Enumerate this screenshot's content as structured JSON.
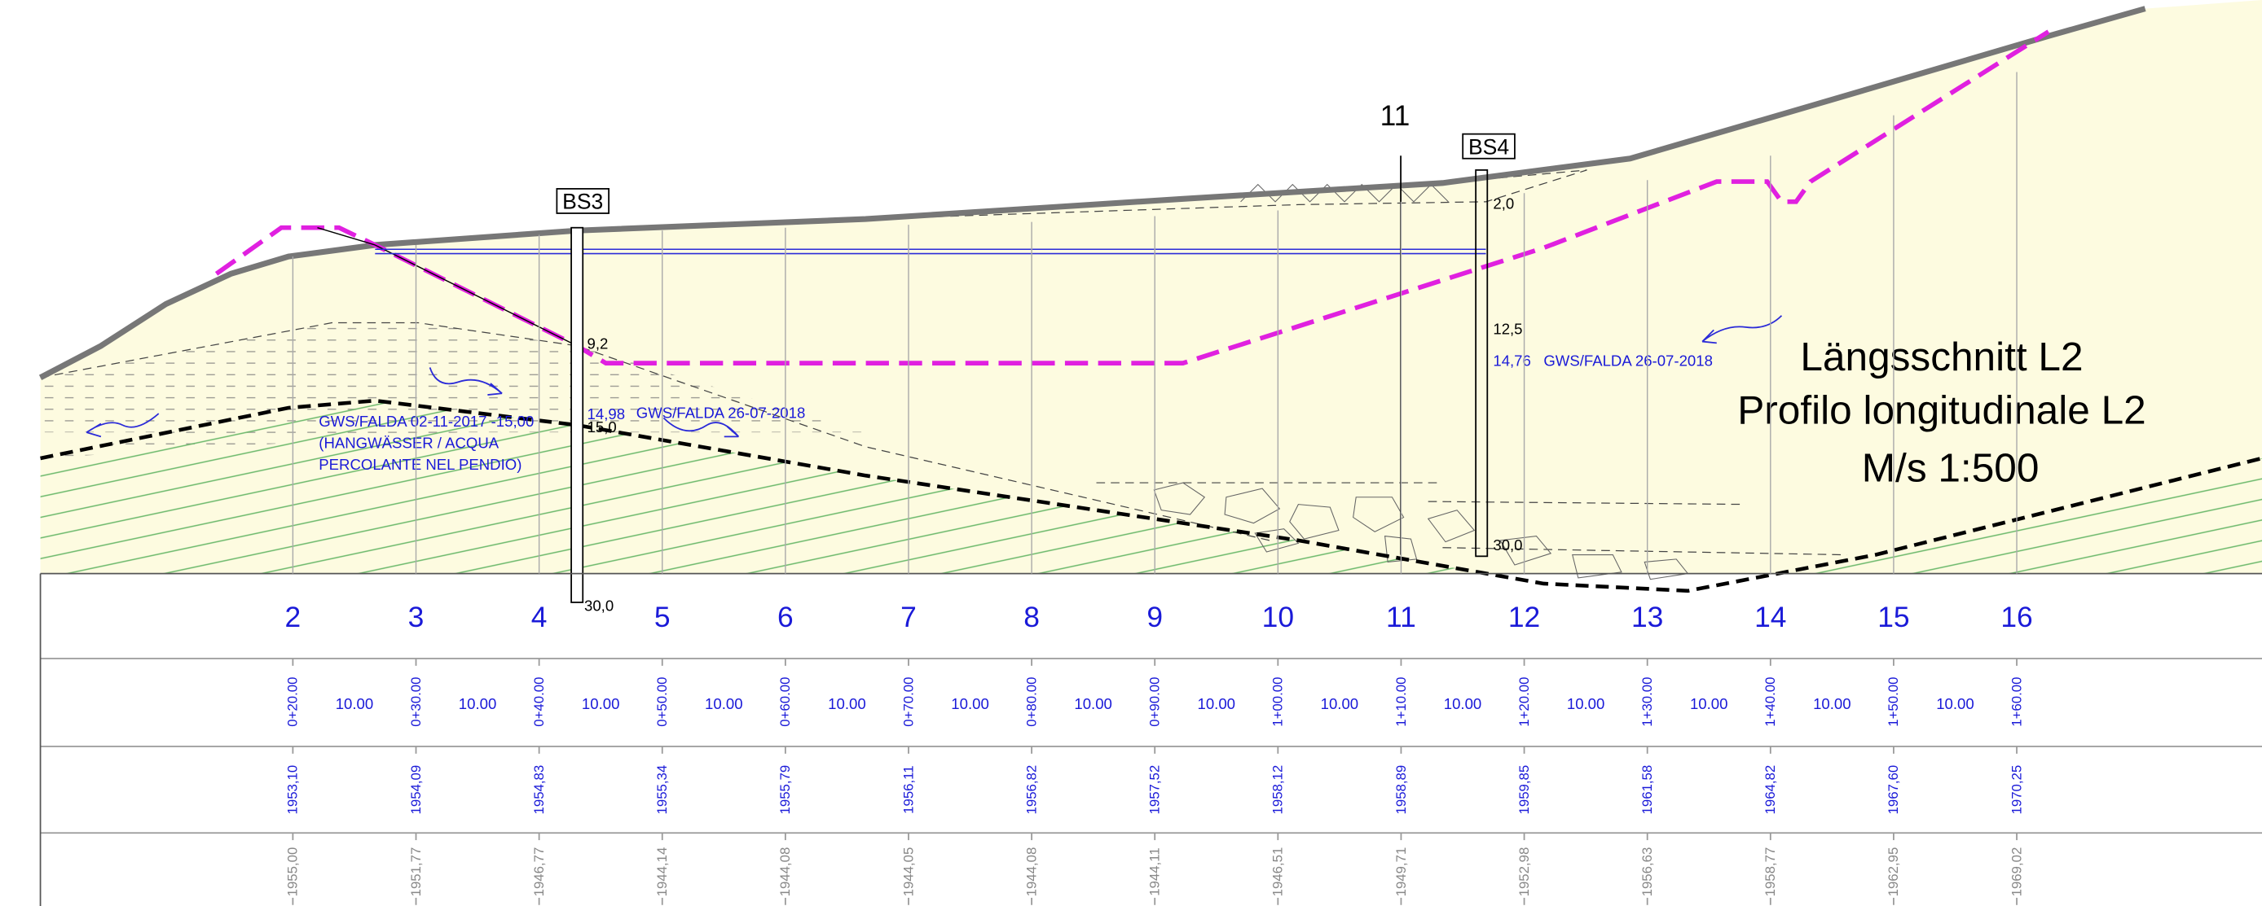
{
  "drawing": {
    "title": [
      "Längsschnitt L2",
      "Profilo longitudinale L2",
      "M/s 1:500"
    ],
    "section_number": "11",
    "boreholes": [
      {
        "name": "BS3",
        "labels": [
          "9,2",
          "14,98",
          "15,0",
          "30,0"
        ]
      },
      {
        "name": "BS4",
        "labels": [
          "2,0",
          "12,5",
          "14,76",
          "30,0"
        ]
      }
    ],
    "groundwater": {
      "left": [
        "GWS/FALDA 02-11-2017 -15,00",
        "(HANGWÄSSER / ACQUA",
        "PERCOLANTE NEL PENDIO)"
      ],
      "mid": "GWS/FALDA 26-07-2018",
      "right": "GWS/FALDA 26-07-2018"
    },
    "stations": [
      {
        "number": "2",
        "chainage": "0+20.00",
        "design": "1953,10",
        "ground": "1955,00"
      },
      {
        "number": "3",
        "chainage": "0+30.00",
        "design": "1954,09",
        "ground": "1951,77"
      },
      {
        "number": "4",
        "chainage": "0+40.00",
        "design": "1954,83",
        "ground": "1946,77"
      },
      {
        "number": "5",
        "chainage": "0+50.00",
        "design": "1955,34",
        "ground": "1944,14"
      },
      {
        "number": "6",
        "chainage": "0+60.00",
        "design": "1955,79",
        "ground": "1944,08"
      },
      {
        "number": "7",
        "chainage": "0+70.00",
        "design": "1956,11",
        "ground": "1944,05"
      },
      {
        "number": "8",
        "chainage": "0+80.00",
        "design": "1956,82",
        "ground": "1944,08"
      },
      {
        "number": "9",
        "chainage": "0+90.00",
        "design": "1957,52",
        "ground": "1944,11"
      },
      {
        "number": "10",
        "chainage": "1+00.00",
        "design": "1958,12",
        "ground": "1946,51"
      },
      {
        "number": "11",
        "chainage": "1+10.00",
        "design": "1958,89",
        "ground": "1949,71"
      },
      {
        "number": "12",
        "chainage": "1+20.00",
        "design": "1959,85",
        "ground": "1952,98"
      },
      {
        "number": "13",
        "chainage": "1+30.00",
        "design": "1961,58",
        "ground": "1956,63"
      },
      {
        "number": "14",
        "chainage": "1+40.00",
        "design": "1964,82",
        "ground": "1958,77"
      },
      {
        "number": "15",
        "chainage": "1+50.00",
        "design": "1967,60",
        "ground": "1962,95"
      },
      {
        "number": "16",
        "chainage": "1+60.00",
        "design": "1970,25",
        "ground": "1969,02"
      }
    ],
    "distances": [
      "10.00",
      "10.00",
      "10.00",
      "10.00",
      "10.00",
      "10.00",
      "10.00",
      "10.00",
      "10.00",
      "10.00",
      "10.00",
      "10.00",
      "10.00",
      "10.00"
    ]
  }
}
